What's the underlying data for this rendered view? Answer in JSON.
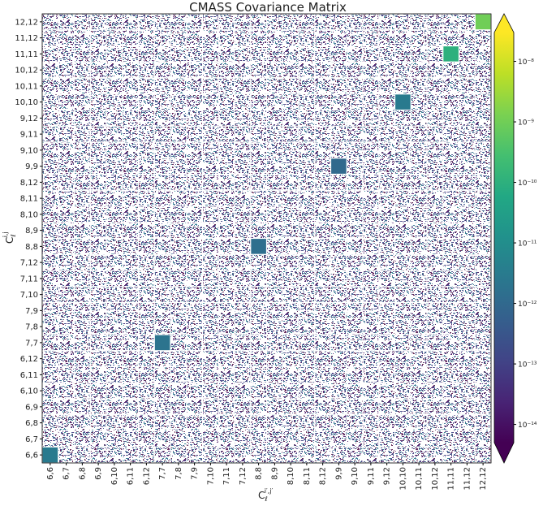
{
  "chart_data": {
    "type": "heatmap",
    "title": "CMASS Covariance Matrix",
    "xlabel": {
      "base": "C",
      "sub": "ℓ",
      "sup": "i′,j′"
    },
    "ylabel": {
      "base": "C",
      "sub": "ℓ",
      "sup": "i,j"
    },
    "categories": [
      "6,6",
      "6,7",
      "6,8",
      "6,9",
      "6,10",
      "6,11",
      "6,12",
      "7,7",
      "7,8",
      "7,9",
      "7,10",
      "7,11",
      "7,12",
      "8,8",
      "8,9",
      "8,10",
      "8,11",
      "8,12",
      "9,9",
      "9,10",
      "9,11",
      "9,12",
      "10,10",
      "10,11",
      "10,12",
      "11,11",
      "11,12",
      "12,12"
    ],
    "values": [
      3e-12,
      null,
      null,
      null,
      null,
      null,
      null,
      2e-12,
      null,
      null,
      null,
      null,
      null,
      1.5e-12,
      null,
      null,
      null,
      null,
      1e-12,
      null,
      null,
      null,
      3e-12,
      null,
      null,
      1e-10,
      null,
      1e-09
    ],
    "colorbar": {
      "log": true,
      "clim": [
        5e-15,
        3e-08
      ],
      "extend": "both",
      "colormap": "viridis",
      "ticks": [
        {
          "value": 1e-14,
          "label": "10⁻¹⁴"
        },
        {
          "value": 1e-13,
          "label": "10⁻¹³"
        },
        {
          "value": 1e-12,
          "label": "10⁻¹²"
        },
        {
          "value": 1e-11,
          "label": "10⁻¹¹"
        },
        {
          "value": 1e-10,
          "label": "10⁻¹⁰"
        },
        {
          "value": 1e-09,
          "label": "10⁻⁹"
        },
        {
          "value": 1e-08,
          "label": "10⁻⁸"
        }
      ]
    }
  }
}
